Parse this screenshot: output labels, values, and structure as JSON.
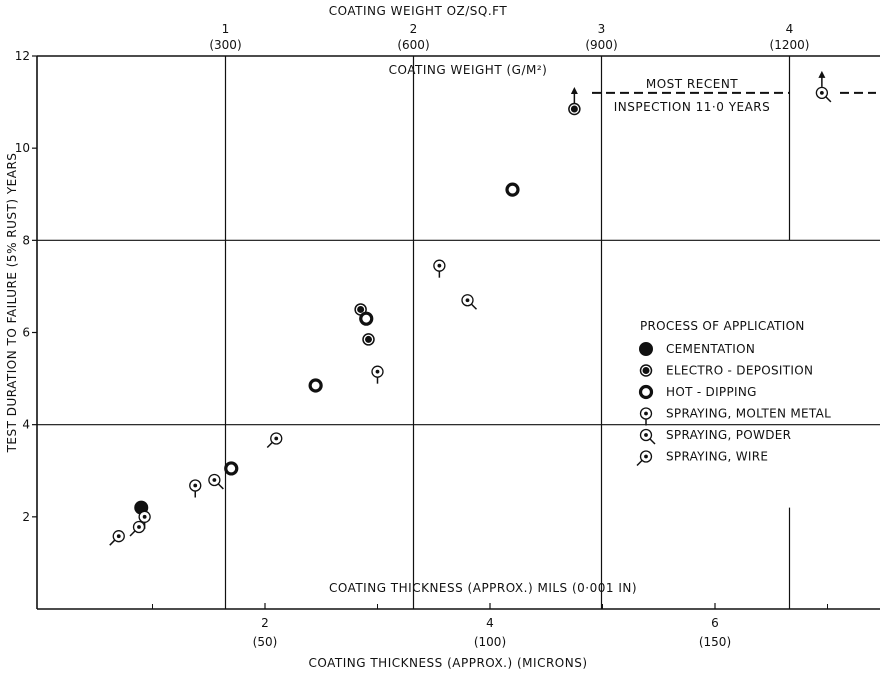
{
  "chart_data": {
    "type": "scatter",
    "title": "",
    "xlabel": "COATING THICKNESS (APPROX.) (MICRONS)",
    "xlabel_inner": "COATING THICKNESS (APPROX.) MILS (0·001 IN)",
    "ylabel": "TEST DURATION TO FAILURE (5% RUST) YEARS",
    "x2label": "COATING WEIGHT OZ/SQ.FT",
    "x2label_inner": "COATING WEIGHT (G/M²)",
    "xlim": [
      0,
      7.5
    ],
    "ylim": [
      0,
      12
    ],
    "grid": true,
    "x_ticks_mils": [
      {
        "value": 2,
        "label": "2",
        "sub": "(50)"
      },
      {
        "value": 4,
        "label": "4",
        "sub": "(100)"
      },
      {
        "value": 6,
        "label": "6",
        "sub": "(150)"
      }
    ],
    "x_ticks_weight": [
      {
        "value": 1,
        "label": "1",
        "sub": "(300)"
      },
      {
        "value": 2,
        "label": "2",
        "sub": "(600)"
      },
      {
        "value": 3,
        "label": "3",
        "sub": "(900)"
      },
      {
        "value": 4,
        "label": "4",
        "sub": "(1200)"
      }
    ],
    "y_ticks": [
      "2",
      "4",
      "6",
      "8",
      "10",
      "12"
    ],
    "legend": {
      "title": "PROCESS OF APPLICATION",
      "placement": "right",
      "entries": [
        {
          "key": "cementation",
          "label": "CEMENTATION"
        },
        {
          "key": "electro",
          "label": "ELECTRO - DEPOSITION"
        },
        {
          "key": "hot",
          "label": "HOT - DIPPING"
        },
        {
          "key": "molten",
          "label": "SPRAYING, MOLTEN METAL"
        },
        {
          "key": "powder",
          "label": "SPRAYING, POWDER"
        },
        {
          "key": "wire",
          "label": "SPRAYING, WIRE"
        }
      ]
    },
    "annotation": {
      "line1": "MOST RECENT",
      "line2": "INSPECTION 11·0 YEARS",
      "value": 11.2
    },
    "series": [
      {
        "name": "CEMENTATION",
        "key": "cementation",
        "points": [
          {
            "x": 0.9,
            "y": 2.2
          }
        ]
      },
      {
        "name": "ELECTRO - DEPOSITION",
        "key": "electro",
        "points": [
          {
            "x": 2.85,
            "y": 6.5
          },
          {
            "x": 2.92,
            "y": 5.85
          },
          {
            "x": 4.75,
            "y": 10.85
          }
        ]
      },
      {
        "name": "HOT - DIPPING",
        "key": "hot",
        "points": [
          {
            "x": 1.7,
            "y": 3.05
          },
          {
            "x": 2.45,
            "y": 4.85
          },
          {
            "x": 2.9,
            "y": 6.3
          },
          {
            "x": 4.2,
            "y": 9.1
          }
        ]
      },
      {
        "name": "SPRAYING, MOLTEN METAL",
        "key": "molten",
        "points": [
          {
            "x": 0.93,
            "y": 2.0
          },
          {
            "x": 1.38,
            "y": 2.68
          },
          {
            "x": 3.0,
            "y": 5.15
          },
          {
            "x": 3.55,
            "y": 7.45
          }
        ]
      },
      {
        "name": "SPRAYING, POWDER",
        "key": "powder",
        "points": [
          {
            "x": 1.55,
            "y": 2.8
          },
          {
            "x": 3.8,
            "y": 6.7
          },
          {
            "x": 6.95,
            "y": 11.2
          }
        ]
      },
      {
        "name": "SPRAYING, WIRE",
        "key": "wire",
        "points": [
          {
            "x": 0.7,
            "y": 1.58
          },
          {
            "x": 0.88,
            "y": 1.78
          },
          {
            "x": 2.1,
            "y": 3.7
          }
        ]
      }
    ],
    "arrows": [
      {
        "x": 4.75,
        "y": 10.85
      },
      {
        "x": 6.95,
        "y": 11.2
      }
    ]
  }
}
